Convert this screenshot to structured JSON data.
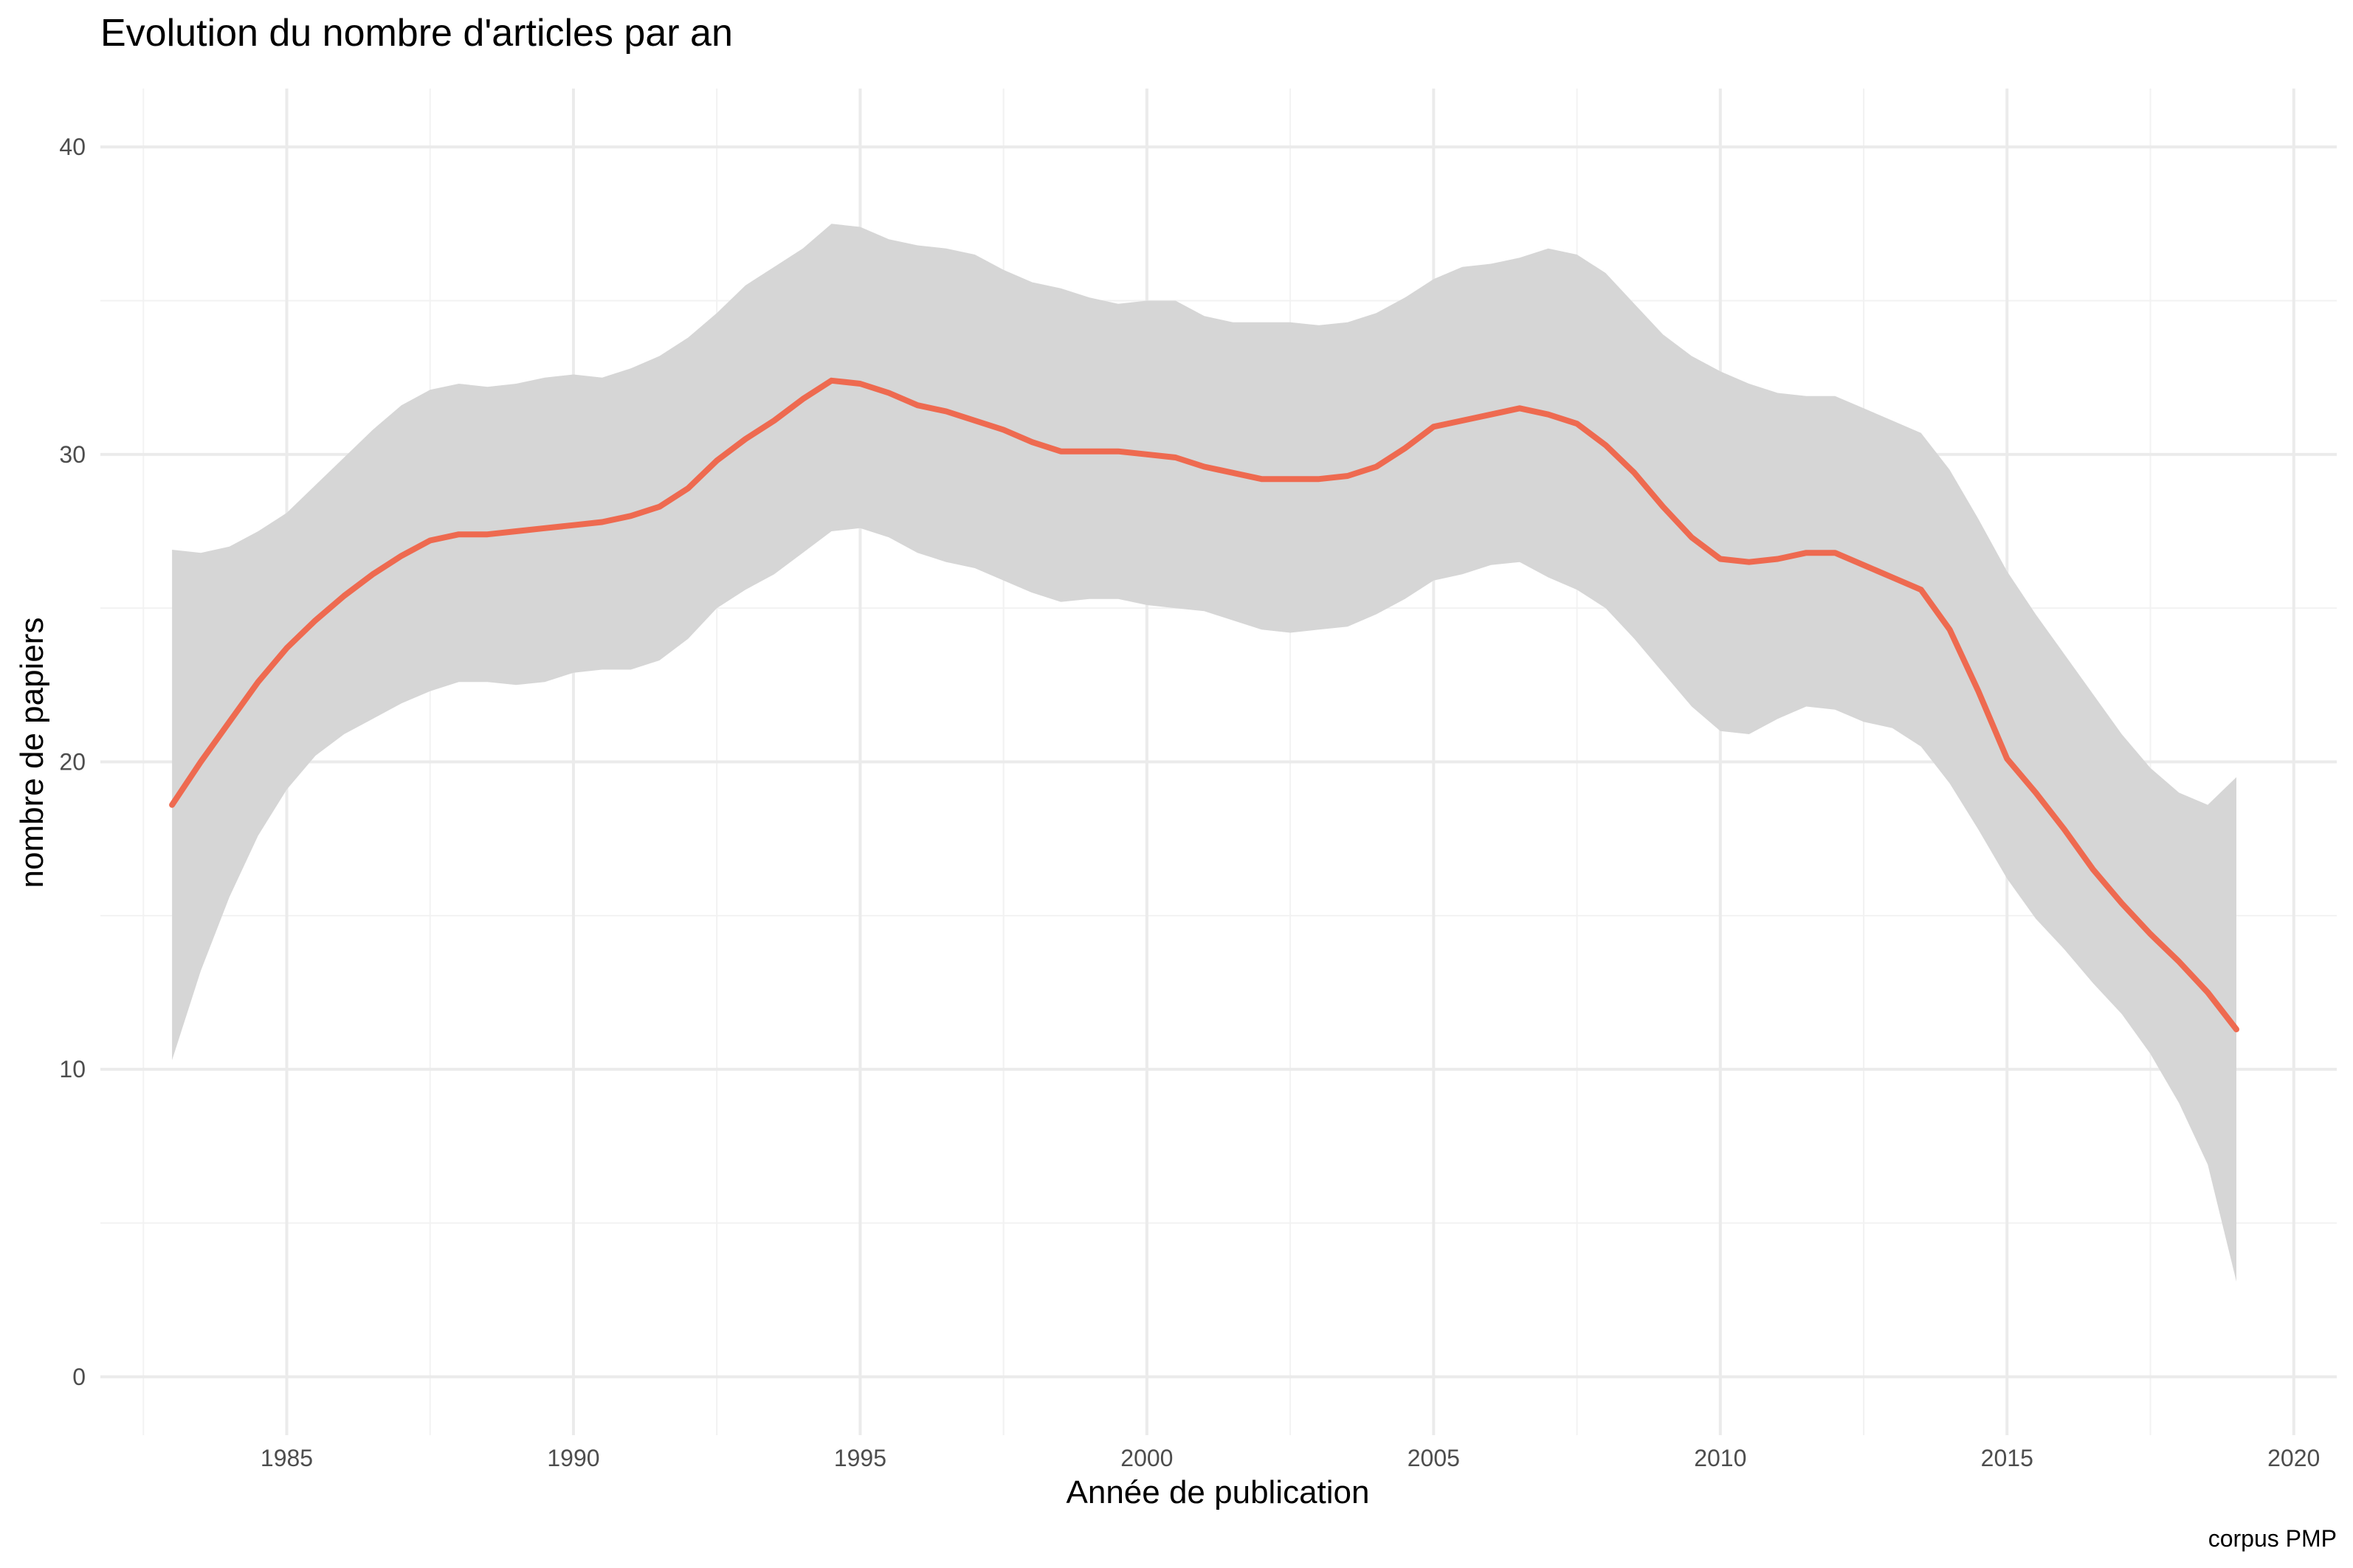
{
  "chart_data": {
    "type": "line",
    "title": "Evolution du nombre d'articles par an",
    "xlabel": "Année de publication",
    "ylabel": "nombre de papiers",
    "caption": "corpus PMP",
    "xlim": [
      1981.75,
      2020.75
    ],
    "ylim": [
      -1.9,
      41.9
    ],
    "x_ticks": [
      1985,
      1990,
      1995,
      2000,
      2005,
      2010,
      2015,
      2020
    ],
    "y_ticks": [
      0,
      10,
      20,
      30,
      40
    ],
    "grid": true,
    "legend": "none",
    "colors": {
      "line": "#EE6A50",
      "ribbon": "#d6d6d6"
    },
    "series": [
      {
        "x": [
          1983.0,
          1983.5,
          1984.0,
          1984.5,
          1985.0,
          1985.5,
          1986.0,
          1986.5,
          1987.0,
          1987.5,
          1988.0,
          1988.5,
          1989.0,
          1989.5,
          1990.0,
          1990.5,
          1991.0,
          1991.5,
          1992.0,
          1992.5,
          1993.0,
          1993.5,
          1994.0,
          1994.5,
          1995.0,
          1995.5,
          1996.0,
          1996.5,
          1997.0,
          1997.5,
          1998.0,
          1998.5,
          1999.0,
          1999.5,
          2000.0,
          2000.5,
          2001.0,
          2001.5,
          2002.0,
          2002.5,
          2003.0,
          2003.5,
          2004.0,
          2004.5,
          2005.0,
          2005.5,
          2006.0,
          2006.5,
          2007.0,
          2007.5,
          2008.0,
          2008.5,
          2009.0,
          2009.5,
          2010.0,
          2010.5,
          2011.0,
          2011.5,
          2012.0,
          2012.5,
          2013.0,
          2013.5,
          2014.0,
          2014.5,
          2015.0,
          2015.5,
          2016.0,
          2016.5,
          2017.0,
          2017.5,
          2018.0,
          2018.5,
          2019.0
        ],
        "y": [
          18.6,
          20.0,
          21.3,
          22.6,
          23.7,
          24.6,
          25.4,
          26.1,
          26.7,
          27.2,
          27.4,
          27.4,
          27.5,
          27.6,
          27.7,
          27.8,
          28.0,
          28.3,
          28.9,
          29.8,
          30.5,
          31.1,
          31.8,
          32.4,
          32.3,
          32.0,
          31.6,
          31.4,
          31.1,
          30.8,
          30.4,
          30.1,
          30.1,
          30.1,
          30.0,
          29.9,
          29.6,
          29.4,
          29.2,
          29.2,
          29.2,
          29.3,
          29.6,
          30.2,
          30.9,
          31.1,
          31.3,
          31.5,
          31.3,
          31.0,
          30.3,
          29.4,
          28.3,
          27.3,
          26.6,
          26.5,
          26.6,
          26.8,
          26.8,
          26.4,
          26.0,
          25.6,
          24.3,
          22.3,
          20.1,
          19.0,
          17.8,
          16.5,
          15.4,
          14.4,
          13.5,
          12.5,
          11.3
        ]
      }
    ],
    "ribbon": {
      "lower": [
        10.3,
        13.2,
        15.6,
        17.6,
        19.1,
        20.2,
        20.9,
        21.4,
        21.9,
        22.3,
        22.6,
        22.6,
        22.5,
        22.6,
        22.9,
        23.0,
        23.0,
        23.3,
        24.0,
        25.0,
        25.6,
        26.1,
        26.8,
        27.5,
        27.6,
        27.3,
        26.8,
        26.5,
        26.3,
        25.9,
        25.5,
        25.2,
        25.3,
        25.3,
        25.1,
        25.0,
        24.9,
        24.6,
        24.3,
        24.2,
        24.3,
        24.4,
        24.8,
        25.3,
        25.9,
        26.1,
        26.4,
        26.5,
        26.0,
        25.6,
        25.0,
        24.0,
        22.9,
        21.8,
        21.0,
        20.9,
        21.4,
        21.8,
        21.7,
        21.3,
        21.1,
        20.5,
        19.3,
        17.8,
        16.2,
        14.9,
        13.9,
        12.8,
        11.8,
        10.5,
        8.9,
        6.9,
        3.1
      ],
      "upper": [
        26.9,
        26.8,
        27.0,
        27.5,
        28.1,
        29.0,
        29.9,
        30.8,
        31.6,
        32.1,
        32.3,
        32.2,
        32.3,
        32.5,
        32.6,
        32.5,
        32.8,
        33.2,
        33.8,
        34.6,
        35.5,
        36.1,
        36.7,
        37.5,
        37.4,
        37.0,
        36.8,
        36.7,
        36.5,
        36.0,
        35.6,
        35.4,
        35.1,
        34.9,
        35.0,
        35.0,
        34.5,
        34.3,
        34.3,
        34.3,
        34.2,
        34.3,
        34.6,
        35.1,
        35.7,
        36.1,
        36.2,
        36.4,
        36.7,
        36.5,
        35.9,
        34.9,
        33.9,
        33.2,
        32.7,
        32.3,
        32.0,
        31.9,
        31.9,
        31.5,
        31.1,
        30.7,
        29.5,
        27.9,
        26.2,
        24.8,
        23.5,
        22.2,
        20.9,
        19.8,
        19.0,
        18.6,
        19.5
      ]
    }
  }
}
